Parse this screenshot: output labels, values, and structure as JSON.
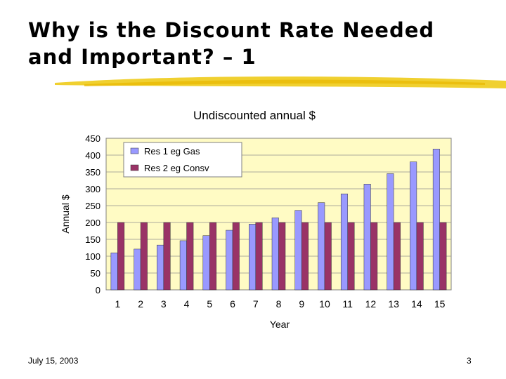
{
  "slide": {
    "title_line1": "Why is the Discount Rate Needed",
    "title_line2": "and Important? – 1",
    "footer_date": "July 15, 2003",
    "page_number": "3"
  },
  "colors": {
    "plot_bg": "#fffbc4",
    "res1": "#9999ff",
    "res2": "#993366",
    "highlight": "#f0d030"
  },
  "chart_data": {
    "type": "bar",
    "title": "Undiscounted annual $",
    "xlabel": "Year",
    "ylabel": "Annual $",
    "ylim": [
      0,
      450
    ],
    "yticks": [
      0,
      50,
      100,
      150,
      200,
      250,
      300,
      350,
      400,
      450
    ],
    "categories": [
      "1",
      "2",
      "3",
      "4",
      "5",
      "6",
      "7",
      "8",
      "9",
      "10",
      "11",
      "12",
      "13",
      "14",
      "15"
    ],
    "legend_position": "top-left",
    "grid": true,
    "series": [
      {
        "name": "Res 1 eg Gas",
        "color": "#9999ff",
        "values": [
          110,
          121,
          133,
          146,
          161,
          177,
          195,
          214,
          236,
          259,
          285,
          314,
          345,
          380,
          418
        ]
      },
      {
        "name": "Res 2 eg Consv",
        "color": "#993366",
        "values": [
          200,
          200,
          200,
          200,
          200,
          200,
          200,
          200,
          200,
          200,
          200,
          200,
          200,
          200,
          200
        ]
      }
    ]
  }
}
